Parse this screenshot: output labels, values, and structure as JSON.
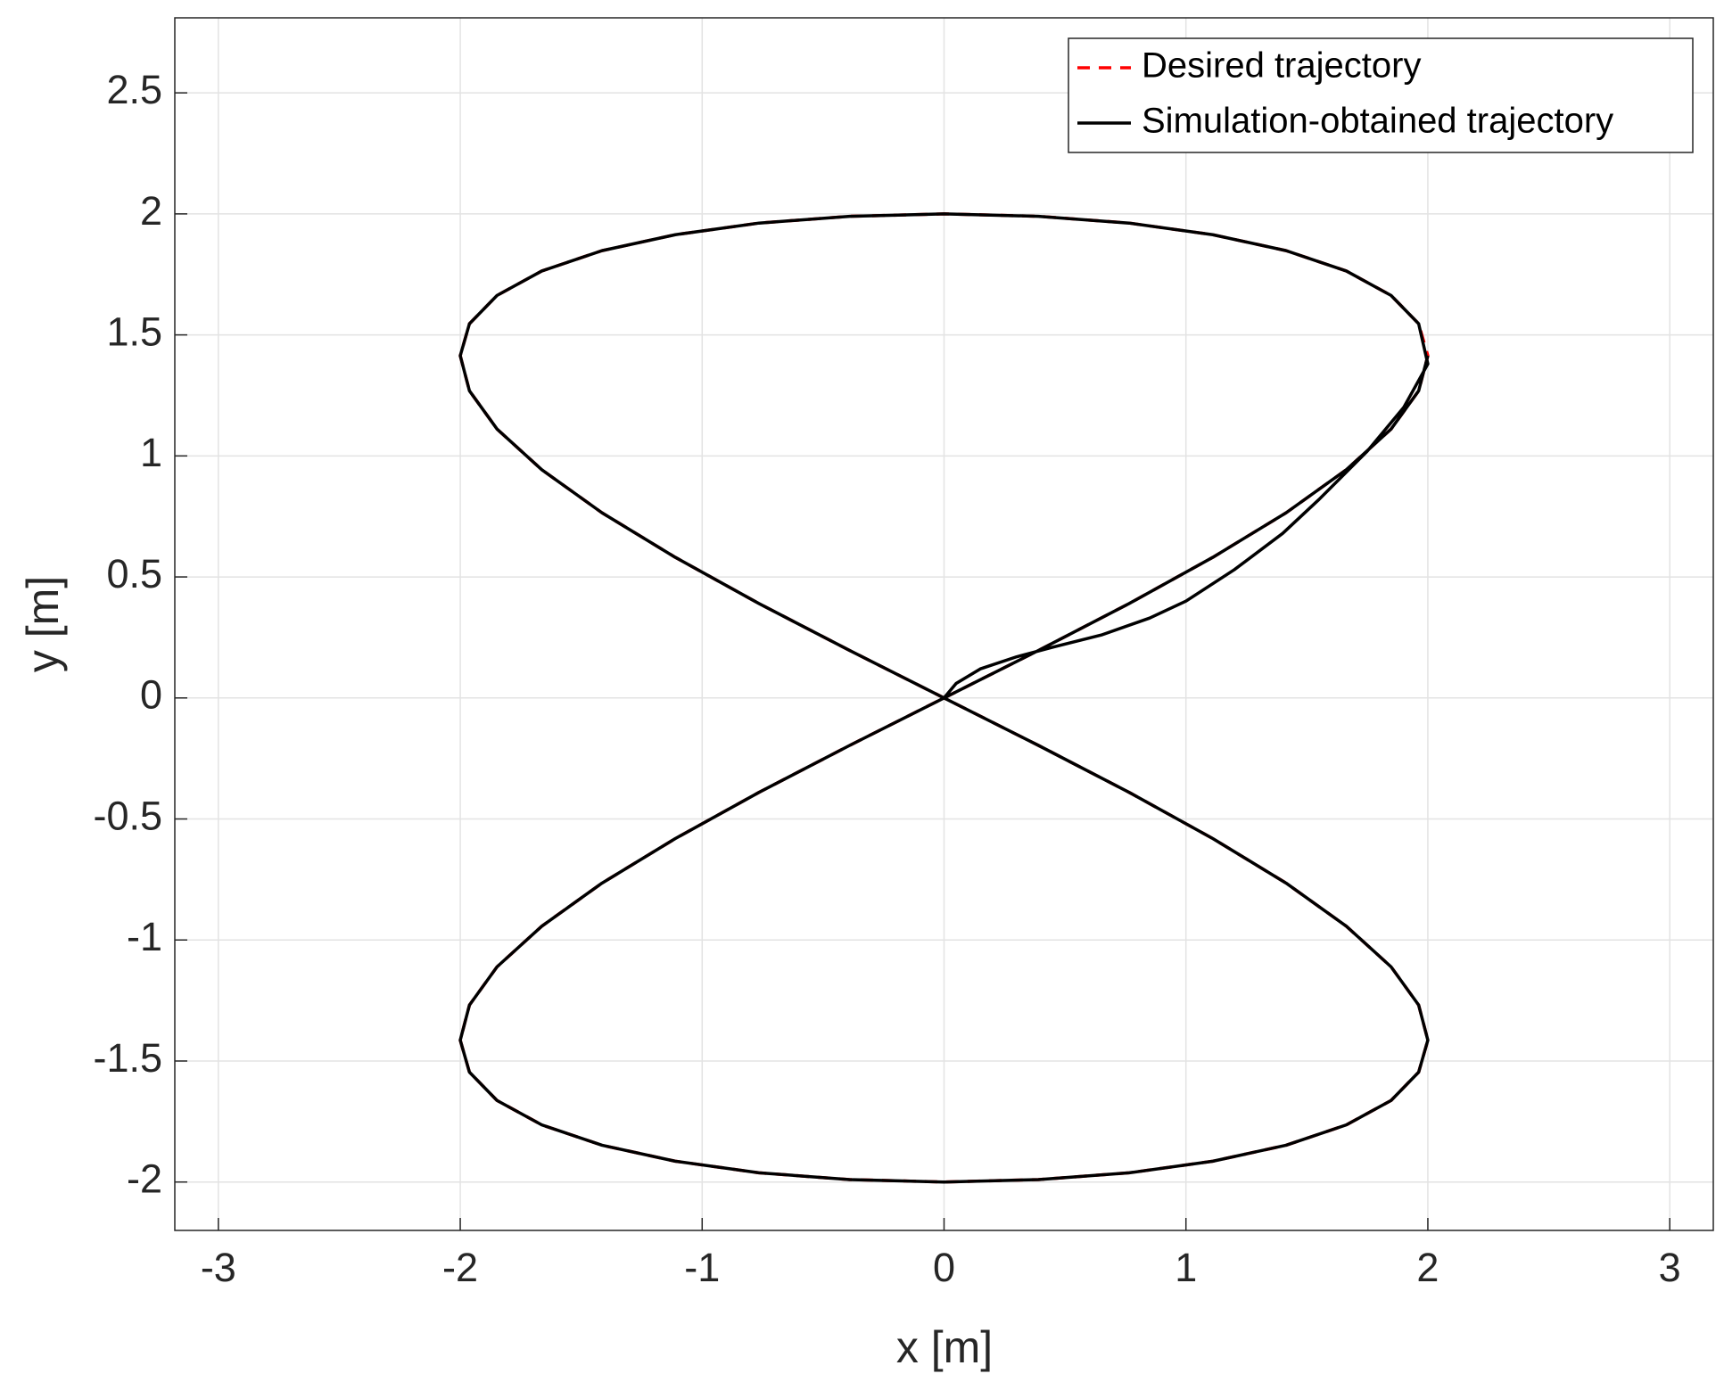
{
  "chart_data": {
    "type": "line",
    "xlabel": "x [m]",
    "ylabel": "y [m]",
    "xlim": [
      -3.18,
      3.18
    ],
    "ylim": [
      -2.2,
      2.81
    ],
    "xticks": [
      -3,
      -2,
      -1,
      0,
      1,
      2,
      3
    ],
    "yticks": [
      -2,
      -1.5,
      -1,
      -0.5,
      0,
      0.5,
      1,
      1.5,
      2,
      2.5
    ],
    "grid": true,
    "legend": "northeast",
    "series": [
      {
        "name": "Desired trajectory",
        "color": "#ff0000",
        "line_style": "dashed",
        "x": [
          0,
          0.39,
          0.765,
          1.111,
          1.414,
          1.663,
          1.848,
          1.962,
          2,
          1.962,
          1.848,
          1.663,
          1.414,
          1.111,
          0.765,
          0.39,
          0,
          -0.39,
          -0.765,
          -1.111,
          -1.414,
          -1.663,
          -1.848,
          -1.962,
          -2,
          -1.962,
          -1.848,
          -1.663,
          -1.414,
          -1.111,
          -0.765,
          -0.39,
          0,
          0.39,
          0.765,
          1.111,
          1.414,
          1.663,
          1.848,
          1.962,
          2,
          1.962,
          1.848,
          1.663,
          1.414,
          1.111,
          0.765,
          0.39,
          0,
          -0.39,
          -0.765,
          -1.111,
          -1.414,
          -1.663,
          -1.848,
          -1.962,
          -2,
          -1.962,
          -1.848,
          -1.663,
          -1.414,
          -1.111,
          -0.765,
          -0.39,
          0
        ],
        "values": [
          0,
          0.196,
          0.39,
          0.581,
          0.765,
          0.943,
          1.111,
          1.269,
          1.414,
          1.546,
          1.663,
          1.764,
          1.848,
          1.914,
          1.962,
          1.99,
          2,
          1.99,
          1.962,
          1.914,
          1.848,
          1.764,
          1.663,
          1.546,
          1.414,
          1.269,
          1.111,
          0.943,
          0.765,
          0.581,
          0.39,
          0.196,
          0,
          -0.196,
          -0.39,
          -0.581,
          -0.765,
          -0.943,
          -1.111,
          -1.269,
          -1.414,
          -1.546,
          -1.663,
          -1.764,
          -1.848,
          -1.914,
          -1.962,
          -1.99,
          -2,
          -1.99,
          -1.962,
          -1.914,
          -1.848,
          -1.764,
          -1.663,
          -1.546,
          -1.414,
          -1.269,
          -1.111,
          -0.943,
          -0.765,
          -0.581,
          -0.39,
          -0.196,
          0
        ]
      },
      {
        "name": "Simulation-obtained trajectory",
        "color": "#000000",
        "line_style": "solid",
        "x": [
          0,
          0.05,
          0.15,
          0.3,
          0.45,
          0.65,
          0.85,
          1.0,
          1.2,
          1.4,
          1.55,
          1.75,
          1.9,
          2,
          1.962,
          1.848,
          1.663,
          1.414,
          1.111,
          0.765,
          0.39,
          0,
          -0.39,
          -0.765,
          -1.111,
          -1.414,
          -1.663,
          -1.848,
          -1.962,
          -2,
          -1.962,
          -1.848,
          -1.663,
          -1.414,
          -1.111,
          -0.765,
          -0.39,
          0,
          0.39,
          0.765,
          1.111,
          1.414,
          1.663,
          1.848,
          1.962,
          2,
          1.962,
          1.848,
          1.663,
          1.414,
          1.111,
          0.765,
          0.39,
          0,
          -0.39,
          -0.765,
          -1.111,
          -1.414,
          -1.663,
          -1.848,
          -1.962,
          -2,
          -1.962,
          -1.848,
          -1.663,
          -1.414,
          -1.111,
          -0.765,
          -0.39,
          0,
          0.39,
          0.765,
          1.111,
          1.414,
          1.663,
          1.848,
          1.962,
          2
        ],
        "values": [
          0,
          0.06,
          0.12,
          0.17,
          0.21,
          0.26,
          0.33,
          0.4,
          0.53,
          0.68,
          0.82,
          1.02,
          1.2,
          1.38,
          1.546,
          1.663,
          1.764,
          1.848,
          1.914,
          1.962,
          1.99,
          2,
          1.99,
          1.962,
          1.914,
          1.848,
          1.764,
          1.663,
          1.546,
          1.414,
          1.269,
          1.111,
          0.943,
          0.765,
          0.581,
          0.39,
          0.196,
          0,
          -0.196,
          -0.39,
          -0.581,
          -0.765,
          -0.943,
          -1.111,
          -1.269,
          -1.414,
          -1.546,
          -1.663,
          -1.764,
          -1.848,
          -1.914,
          -1.962,
          -1.99,
          -2,
          -1.99,
          -1.962,
          -1.914,
          -1.848,
          -1.764,
          -1.663,
          -1.546,
          -1.414,
          -1.269,
          -1.111,
          -0.943,
          -0.765,
          -0.581,
          -0.39,
          -0.196,
          0,
          0.196,
          0.39,
          0.581,
          0.765,
          0.943,
          1.111,
          1.269,
          1.414
        ]
      }
    ]
  }
}
